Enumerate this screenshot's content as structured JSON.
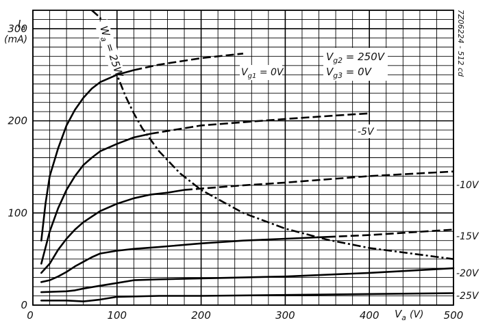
{
  "chart_data": {
    "type": "line",
    "title": "",
    "ylabel": "I",
    "ylabel_sub": "a",
    "yunit": "(mA)",
    "xlabel": "V",
    "xlabel_sub": "a",
    "xunit": "(V)",
    "xlim": [
      0,
      500
    ],
    "ylim": [
      0,
      320
    ],
    "grid": true,
    "xticks": [
      {
        "value": 0,
        "label": "0"
      },
      {
        "value": 100,
        "label": "100"
      },
      {
        "value": 200,
        "label": "200"
      },
      {
        "value": 300,
        "label": "300"
      },
      {
        "value": 400,
        "label": "400"
      },
      {
        "value": 500,
        "label": "500"
      }
    ],
    "yticks": [
      {
        "value": 0,
        "label": "0"
      },
      {
        "value": 100,
        "label": "100"
      },
      {
        "value": 200,
        "label": "200"
      },
      {
        "value": 300,
        "label": "300"
      }
    ],
    "conditions": [
      {
        "main": "V",
        "sub": "g2",
        "value": " = 250V"
      },
      {
        "main": "V",
        "sub": "g3",
        "value": " = 0V"
      }
    ],
    "side_text": "7Z06224 - 512 cd",
    "series": [
      {
        "name": "Vg1 = 0V",
        "label_parts": {
          "main": "V",
          "sub": "g1",
          "value": " = 0V"
        },
        "solid": [
          [
            10,
            70
          ],
          [
            15,
            110
          ],
          [
            20,
            140
          ],
          [
            30,
            170
          ],
          [
            40,
            195
          ],
          [
            50,
            212
          ],
          [
            60,
            225
          ],
          [
            70,
            235
          ],
          [
            80,
            242
          ],
          [
            100,
            250
          ],
          [
            120,
            255
          ]
        ],
        "dashed": [
          [
            120,
            255
          ],
          [
            150,
            261
          ],
          [
            200,
            268
          ],
          [
            250,
            273
          ]
        ]
      },
      {
        "name": "-5V",
        "solid": [
          [
            10,
            45
          ],
          [
            20,
            80
          ],
          [
            30,
            105
          ],
          [
            40,
            125
          ],
          [
            50,
            140
          ],
          [
            60,
            152
          ],
          [
            70,
            160
          ],
          [
            80,
            167
          ],
          [
            100,
            175
          ],
          [
            120,
            182
          ],
          [
            140,
            186
          ]
        ],
        "dashed": [
          [
            140,
            186
          ],
          [
            200,
            195
          ],
          [
            300,
            202
          ],
          [
            380,
            207
          ],
          [
            400,
            208
          ]
        ]
      },
      {
        "name": "-10V",
        "solid": [
          [
            10,
            35
          ],
          [
            20,
            45
          ],
          [
            30,
            60
          ],
          [
            40,
            72
          ],
          [
            50,
            82
          ],
          [
            60,
            90
          ],
          [
            80,
            102
          ],
          [
            100,
            110
          ],
          [
            120,
            116
          ],
          [
            140,
            120
          ],
          [
            160,
            122
          ],
          [
            180,
            125
          ]
        ],
        "dashed": [
          [
            180,
            125
          ],
          [
            250,
            130
          ],
          [
            300,
            133
          ],
          [
            400,
            140
          ],
          [
            500,
            145
          ]
        ]
      },
      {
        "name": "-15V",
        "solid": [
          [
            10,
            25
          ],
          [
            20,
            27
          ],
          [
            30,
            31
          ],
          [
            40,
            36
          ],
          [
            50,
            42
          ],
          [
            60,
            47
          ],
          [
            70,
            52
          ],
          [
            80,
            56
          ],
          [
            100,
            59
          ],
          [
            120,
            61
          ],
          [
            150,
            63
          ],
          [
            200,
            67
          ],
          [
            250,
            70
          ],
          [
            300,
            72
          ],
          [
            350,
            74
          ]
        ],
        "dashed": [
          [
            350,
            74
          ],
          [
            400,
            76
          ],
          [
            450,
            79
          ],
          [
            500,
            82
          ]
        ]
      },
      {
        "name": "-20V",
        "solid": [
          [
            10,
            14
          ],
          [
            40,
            15
          ],
          [
            50,
            16
          ],
          [
            60,
            18
          ],
          [
            80,
            21
          ],
          [
            100,
            24
          ],
          [
            120,
            27
          ],
          [
            150,
            28
          ],
          [
            200,
            29
          ],
          [
            300,
            31
          ],
          [
            400,
            35
          ],
          [
            500,
            40
          ]
        ],
        "dashed": []
      },
      {
        "name": "-25V",
        "solid": [
          [
            10,
            5
          ],
          [
            40,
            5
          ],
          [
            60,
            4
          ],
          [
            80,
            6
          ],
          [
            100,
            9
          ],
          [
            150,
            10
          ],
          [
            200,
            10
          ],
          [
            300,
            11
          ],
          [
            400,
            12
          ],
          [
            500,
            13
          ]
        ],
        "dashed": []
      }
    ],
    "limit_curve": {
      "name": "Wa = 25W",
      "label_parts": {
        "main": "W",
        "sub": "a",
        "value": " = 25W"
      },
      "points": [
        [
          70,
          320
        ],
        [
          80,
          312
        ],
        [
          90,
          278
        ],
        [
          100,
          250
        ],
        [
          110,
          227
        ],
        [
          120,
          208
        ],
        [
          130,
          192
        ],
        [
          150,
          167
        ],
        [
          175,
          143
        ],
        [
          200,
          125
        ],
        [
          250,
          100
        ],
        [
          300,
          83
        ],
        [
          350,
          71
        ],
        [
          400,
          62
        ],
        [
          450,
          56
        ],
        [
          500,
          50
        ]
      ]
    }
  }
}
